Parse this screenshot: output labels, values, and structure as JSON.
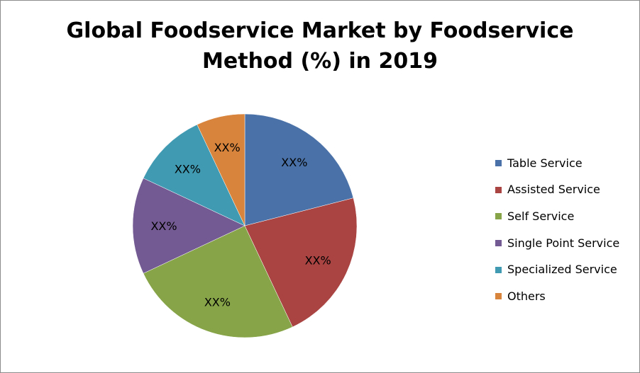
{
  "chart_data": {
    "type": "pie",
    "title": "Global Foodservice Market by Foodservice Method (%) in 2019",
    "title_lines": [
      "Global Foodservice Market by Foodservice",
      "Method (%) in 2019"
    ],
    "categories": [
      "Table Service",
      "Assisted Service",
      "Self Service",
      "Single Point Service",
      "Specialized Service",
      "Others"
    ],
    "values": [
      21,
      22,
      25,
      14,
      11,
      7
    ],
    "data_labels": [
      "XX%",
      "XX%",
      "XX%",
      "XX%",
      "XX%",
      "XX%"
    ],
    "colors": [
      "#4a72a8",
      "#a94442",
      "#87a548",
      "#735a92",
      "#3f9ab2",
      "#d9843c"
    ],
    "legend_position": "right",
    "start_angle_deg": 0,
    "direction": "clockwise"
  }
}
